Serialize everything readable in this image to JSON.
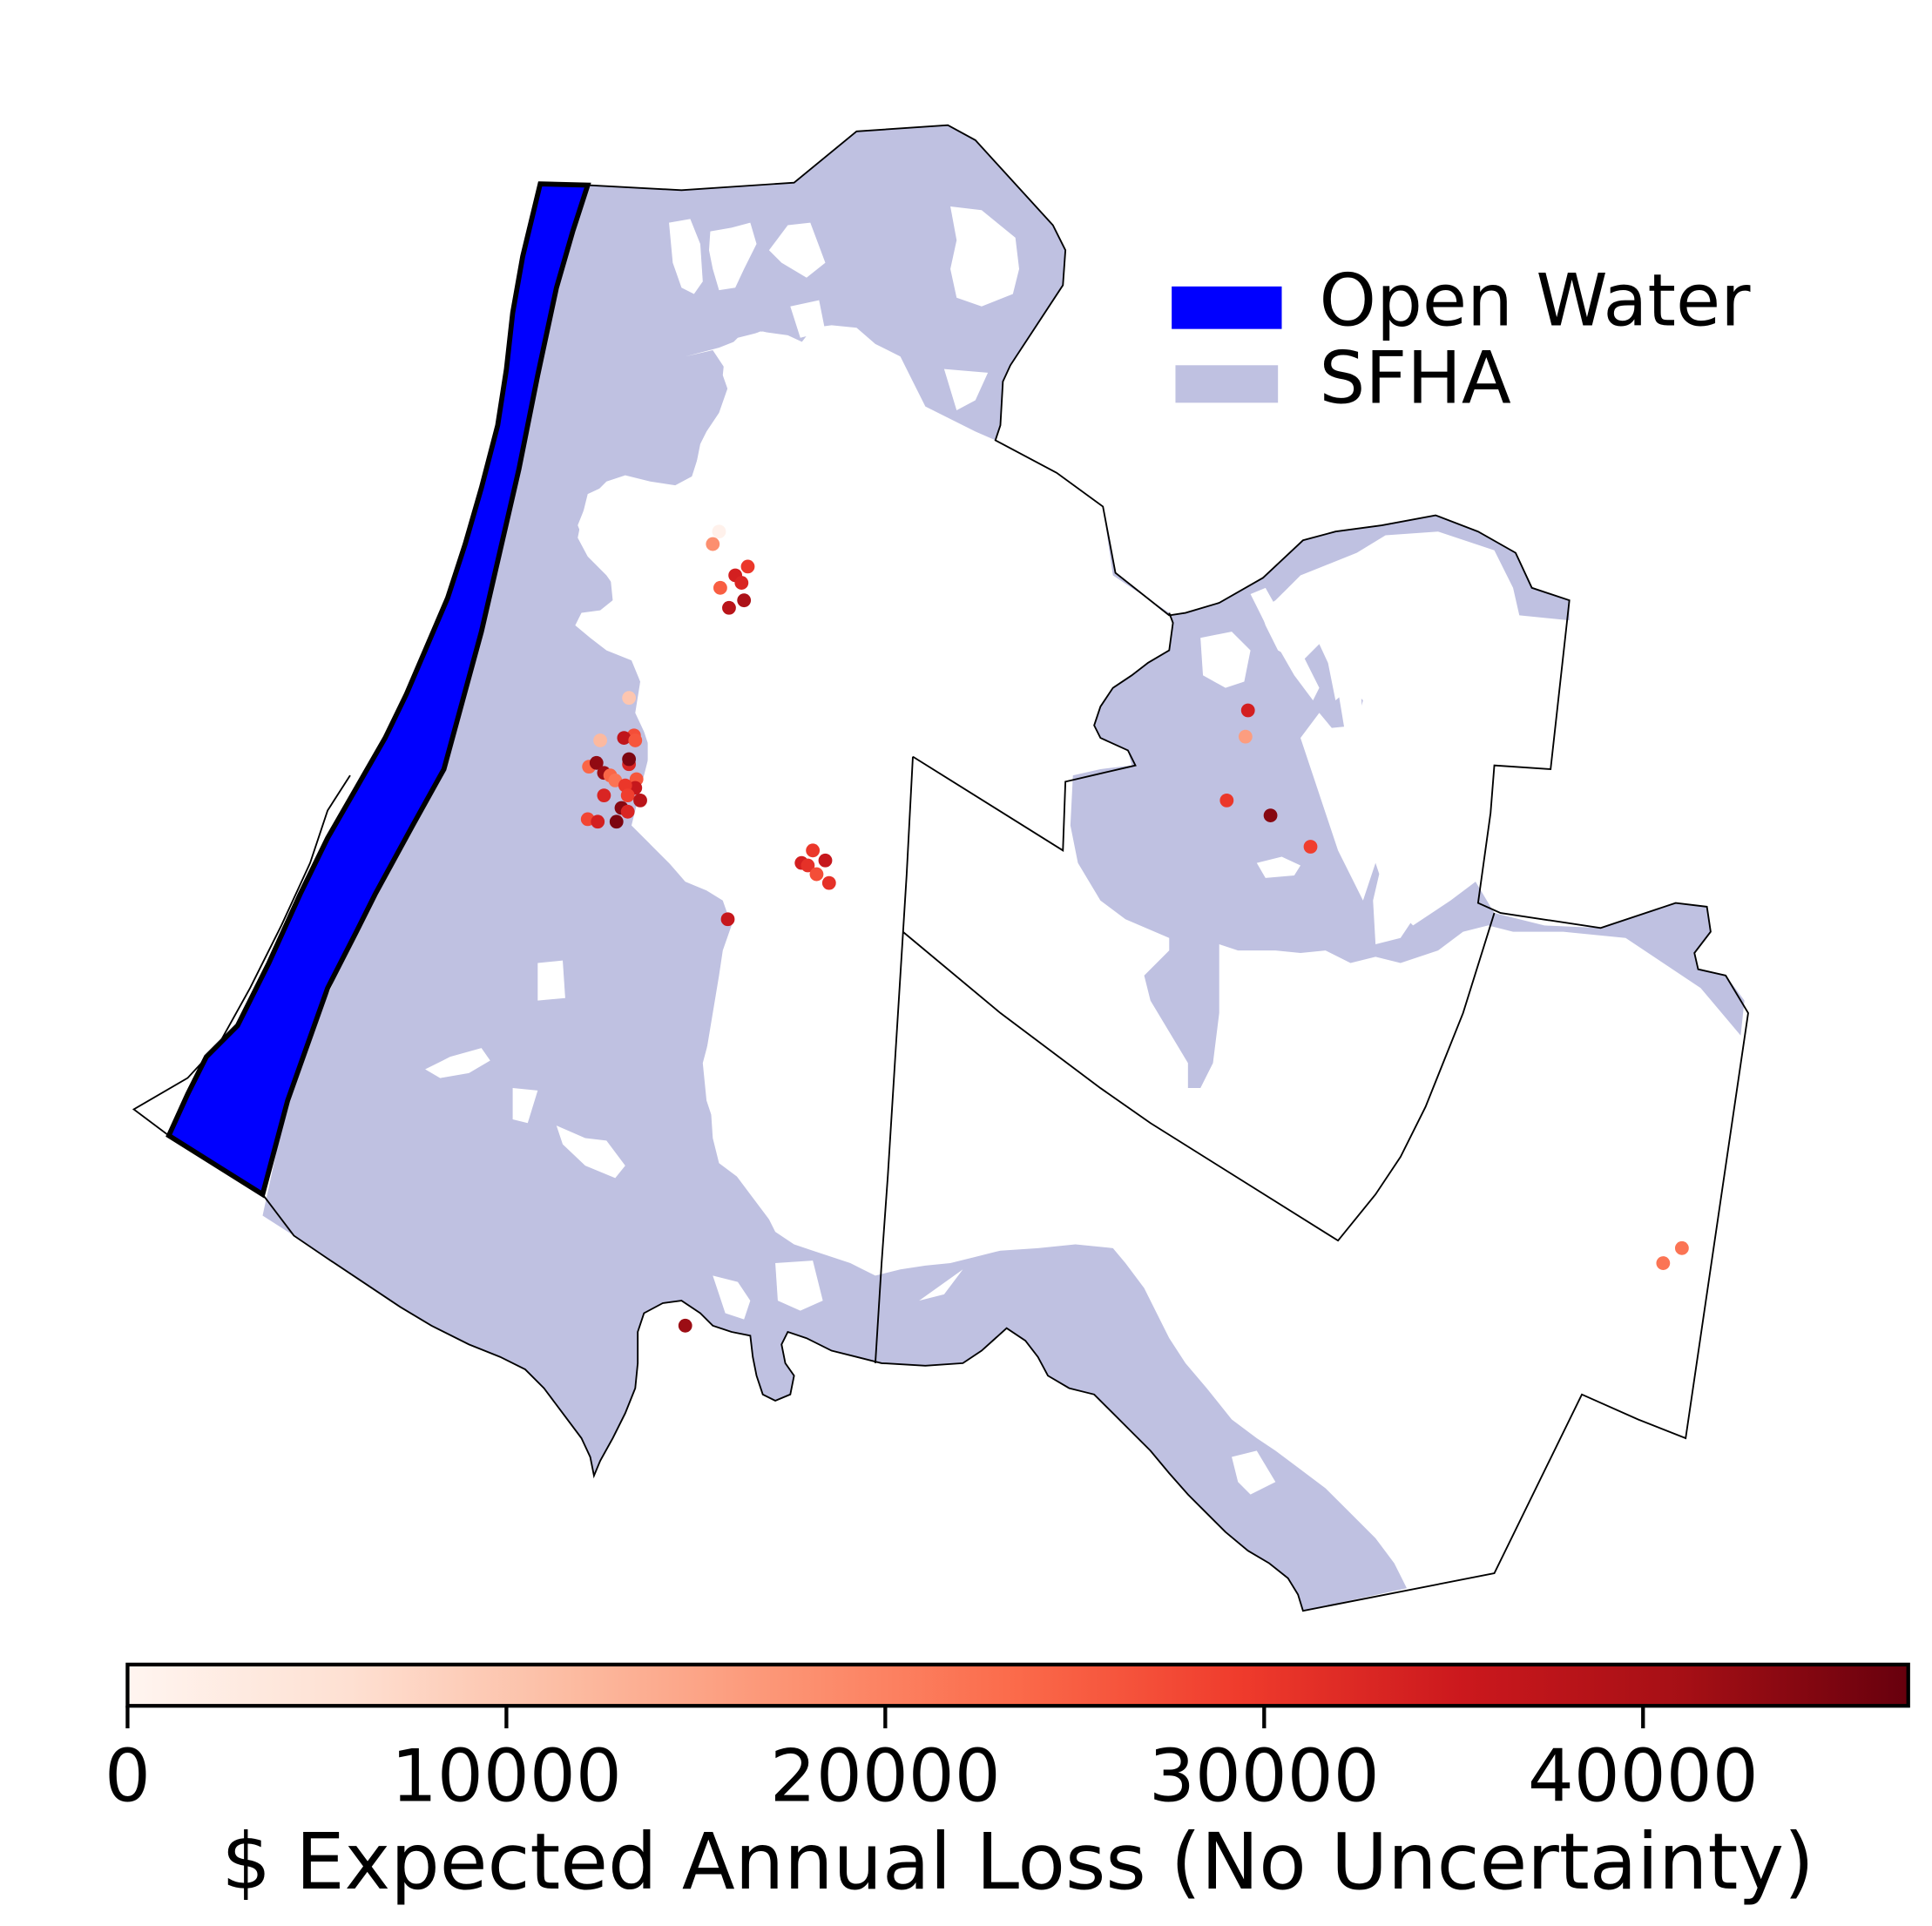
{
  "legend": {
    "items": [
      {
        "label": "Open Water",
        "color": "#0000ff"
      },
      {
        "label": "SFHA",
        "color": "#bfc1e1"
      }
    ]
  },
  "colorbar": {
    "label": "$ Expected Annual Loss (No Uncertainty)",
    "min": 0,
    "max": 47000,
    "ticks": [
      0,
      10000,
      20000,
      30000,
      40000
    ],
    "tick_labels": [
      "0",
      "10000",
      "20000",
      "30000",
      "40000"
    ],
    "colormap": "Reds",
    "stops": [
      "#fff5f0",
      "#fee0d2",
      "#fcbba1",
      "#fc9272",
      "#fb6a4a",
      "#ef3b2c",
      "#cb181d",
      "#a50f15",
      "#67000d"
    ]
  },
  "properties": [
    {
      "loss": 1000
    },
    {
      "loss": 18000
    },
    {
      "loss": 30000
    },
    {
      "loss": 34000
    },
    {
      "loss": 33000
    },
    {
      "loss": 25000
    },
    {
      "loss": 38000
    },
    {
      "loss": 40000
    },
    {
      "loss": 10000
    },
    {
      "loss": 27000
    },
    {
      "loss": 37000
    },
    {
      "loss": 12000
    },
    {
      "loss": 26000
    },
    {
      "loss": 33000
    },
    {
      "loss": 45000
    },
    {
      "loss": 24000
    },
    {
      "loss": 43000
    },
    {
      "loss": 42000
    },
    {
      "loss": 24000
    },
    {
      "loss": 22000
    },
    {
      "loss": 26000
    },
    {
      "loss": 36000
    },
    {
      "loss": 30000
    },
    {
      "loss": 33000
    },
    {
      "loss": 29000
    },
    {
      "loss": 38000
    },
    {
      "loss": 44000
    },
    {
      "loss": 33000
    },
    {
      "loss": 28000
    },
    {
      "loss": 34000
    },
    {
      "loss": 45000
    },
    {
      "loss": 30000
    },
    {
      "loss": 36000
    },
    {
      "loss": 34000
    },
    {
      "loss": 31000
    },
    {
      "loss": 27000
    },
    {
      "loss": 31000
    },
    {
      "loss": 36000
    },
    {
      "loss": 34000
    },
    {
      "loss": 16000
    },
    {
      "loss": 30000
    },
    {
      "loss": 44000
    },
    {
      "loss": 29000
    },
    {
      "loss": 22000
    },
    {
      "loss": 22000
    },
    {
      "loss": 42000
    },
    {
      "loss": 1500
    },
    {
      "loss": 1200
    }
  ]
}
